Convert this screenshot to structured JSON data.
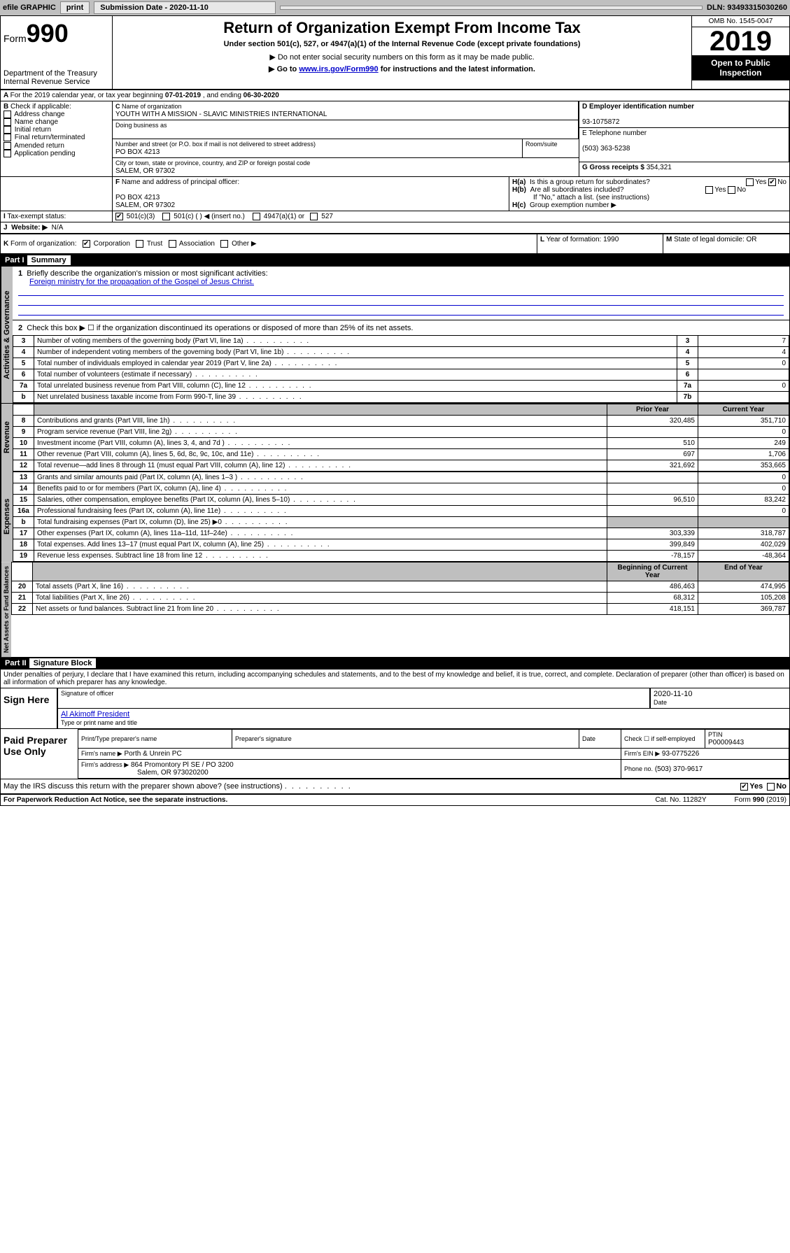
{
  "topbar": {
    "efile": "efile GRAPHIC",
    "print": "print",
    "sub_label": "Submission Date - 2020-11-10",
    "dln": "DLN: 93493315030260"
  },
  "header": {
    "form_word": "Form",
    "form_num": "990",
    "dept": "Department of the Treasury",
    "irs": "Internal Revenue Service",
    "title": "Return of Organization Exempt From Income Tax",
    "subtitle": "Under section 501(c), 527, or 4947(a)(1) of the Internal Revenue Code (except private foundations)",
    "note1": "▶ Do not enter social security numbers on this form as it may be made public.",
    "note2_pre": "▶ Go to ",
    "note2_link": "www.irs.gov/Form990",
    "note2_post": " for instructions and the latest information.",
    "omb": "OMB No. 1545-0047",
    "year": "2019",
    "open": "Open to Public Inspection"
  },
  "period": {
    "text_pre": "For the 2019 calendar year, or tax year beginning ",
    "begin": "07-01-2019",
    "mid": " , and ending ",
    "end": "06-30-2020"
  },
  "boxB": {
    "label": "Check if applicable:",
    "items": [
      "Address change",
      "Name change",
      "Initial return",
      "Final return/terminated",
      "Amended return",
      "Application pending"
    ]
  },
  "boxC": {
    "name_label": "Name of organization",
    "name": "YOUTH WITH A MISSION - SLAVIC MINISTRIES INTERNATIONAL",
    "dba_label": "Doing business as",
    "addr_label": "Number and street (or P.O. box if mail is not delivered to street address)",
    "room_label": "Room/suite",
    "addr": "PO BOX 4213",
    "city_label": "City or town, state or province, country, and ZIP or foreign postal code",
    "city": "SALEM, OR  97302"
  },
  "boxD": {
    "label": "D Employer identification number",
    "val": "93-1075872"
  },
  "boxE": {
    "label": "E Telephone number",
    "val": "(503) 363-5238"
  },
  "boxG": {
    "label": "G Gross receipts $ ",
    "val": "354,321"
  },
  "boxF": {
    "label": "Name and address of principal officer:",
    "line1": "PO BOX 4213",
    "line2": "SALEM, OR  97302"
  },
  "boxH": {
    "a": "Is this a group return for subordinates?",
    "b": "Are all subordinates included?",
    "b_note": "If \"No,\" attach a list. (see instructions)",
    "c": "Group exemption number ▶",
    "yes": "Yes",
    "no": "No"
  },
  "boxI": {
    "label": "Tax-exempt status:",
    "opt1": "501(c)(3)",
    "opt2": "501(c) (   ) ◀ (insert no.)",
    "opt3": "4947(a)(1) or",
    "opt4": "527"
  },
  "boxJ": {
    "label": "Website: ▶",
    "val": "N/A"
  },
  "boxK": {
    "label": "Form of organization:",
    "corp": "Corporation",
    "trust": "Trust",
    "assoc": "Association",
    "other": "Other ▶"
  },
  "boxL": {
    "label": "Year of formation: ",
    "val": "1990"
  },
  "boxM": {
    "label": "State of legal domicile: ",
    "val": "OR"
  },
  "part1": {
    "label": "Part I",
    "title": "Summary",
    "sides": {
      "gov": "Activities & Governance",
      "rev": "Revenue",
      "exp": "Expenses",
      "net": "Net Assets or Fund Balances"
    },
    "q1": "Briefly describe the organization's mission or most significant activities:",
    "q1_ans": "Foreign ministry for the propagation of the Gospel of Jesus Christ.",
    "q2": "Check this box ▶ ☐  if the organization discontinued its operations or disposed of more than 25% of its net assets.",
    "rows_gov": [
      {
        "n": "3",
        "t": "Number of voting members of the governing body (Part VI, line 1a)",
        "b": "3",
        "v": "7"
      },
      {
        "n": "4",
        "t": "Number of independent voting members of the governing body (Part VI, line 1b)",
        "b": "4",
        "v": "4"
      },
      {
        "n": "5",
        "t": "Total number of individuals employed in calendar year 2019 (Part V, line 2a)",
        "b": "5",
        "v": "0"
      },
      {
        "n": "6",
        "t": "Total number of volunteers (estimate if necessary)",
        "b": "6",
        "v": ""
      },
      {
        "n": "7a",
        "t": "Total unrelated business revenue from Part VIII, column (C), line 12",
        "b": "7a",
        "v": "0"
      },
      {
        "n": "b",
        "t": "Net unrelated business taxable income from Form 990-T, line 39",
        "b": "7b",
        "v": ""
      }
    ],
    "col_prior": "Prior Year",
    "col_curr": "Current Year",
    "col_beg": "Beginning of Current Year",
    "col_end": "End of Year",
    "rows_rev": [
      {
        "n": "8",
        "t": "Contributions and grants (Part VIII, line 1h)",
        "p": "320,485",
        "c": "351,710"
      },
      {
        "n": "9",
        "t": "Program service revenue (Part VIII, line 2g)",
        "p": "",
        "c": "0"
      },
      {
        "n": "10",
        "t": "Investment income (Part VIII, column (A), lines 3, 4, and 7d )",
        "p": "510",
        "c": "249"
      },
      {
        "n": "11",
        "t": "Other revenue (Part VIII, column (A), lines 5, 6d, 8c, 9c, 10c, and 11e)",
        "p": "697",
        "c": "1,706"
      },
      {
        "n": "12",
        "t": "Total revenue—add lines 8 through 11 (must equal Part VIII, column (A), line 12)",
        "p": "321,692",
        "c": "353,665"
      }
    ],
    "rows_exp": [
      {
        "n": "13",
        "t": "Grants and similar amounts paid (Part IX, column (A), lines 1–3 )",
        "p": "",
        "c": "0"
      },
      {
        "n": "14",
        "t": "Benefits paid to or for members (Part IX, column (A), line 4)",
        "p": "",
        "c": "0"
      },
      {
        "n": "15",
        "t": "Salaries, other compensation, employee benefits (Part IX, column (A), lines 5–10)",
        "p": "96,510",
        "c": "83,242"
      },
      {
        "n": "16a",
        "t": "Professional fundraising fees (Part IX, column (A), line 11e)",
        "p": "",
        "c": "0"
      },
      {
        "n": "b",
        "t": "Total fundraising expenses (Part IX, column (D), line 25) ▶0",
        "p": "",
        "c": "",
        "grey": true
      },
      {
        "n": "17",
        "t": "Other expenses (Part IX, column (A), lines 11a–11d, 11f–24e)",
        "p": "303,339",
        "c": "318,787"
      },
      {
        "n": "18",
        "t": "Total expenses. Add lines 13–17 (must equal Part IX, column (A), line 25)",
        "p": "399,849",
        "c": "402,029"
      },
      {
        "n": "19",
        "t": "Revenue less expenses. Subtract line 18 from line 12",
        "p": "-78,157",
        "c": "-48,364"
      }
    ],
    "rows_net": [
      {
        "n": "20",
        "t": "Total assets (Part X, line 16)",
        "p": "486,463",
        "c": "474,995"
      },
      {
        "n": "21",
        "t": "Total liabilities (Part X, line 26)",
        "p": "68,312",
        "c": "105,208"
      },
      {
        "n": "22",
        "t": "Net assets or fund balances. Subtract line 21 from line 20",
        "p": "418,151",
        "c": "369,787"
      }
    ]
  },
  "part2": {
    "label": "Part II",
    "title": "Signature Block",
    "penalty": "Under penalties of perjury, I declare that I have examined this return, including accompanying schedules and statements, and to the best of my knowledge and belief, it is true, correct, and complete. Declaration of preparer (other than officer) is based on all information of which preparer has any knowledge.",
    "sign_here": "Sign Here",
    "sig_officer": "Signature of officer",
    "date": "Date",
    "date_val": "2020-11-10",
    "name_title": "Al Akimoff  President",
    "type_name": "Type or print name and title",
    "paid": "Paid Preparer Use Only",
    "prep_name_label": "Print/Type preparer's name",
    "prep_sig_label": "Preparer's signature",
    "prep_date_label": "Date",
    "check_self": "Check ☐ if self-employed",
    "ptin_label": "PTIN",
    "ptin": "P00009443",
    "firm_name_label": "Firm's name  ▶",
    "firm_name": "Porth & Unrein PC",
    "firm_ein_label": "Firm's EIN ▶",
    "firm_ein": "93-0775226",
    "firm_addr_label": "Firm's address ▶",
    "firm_addr1": "864 Promontory Pl SE / PO 3200",
    "firm_addr2": "Salem, OR  973020200",
    "phone_label": "Phone no.",
    "phone": "(503) 370-9617",
    "discuss": "May the IRS discuss this return with the preparer shown above? (see instructions)",
    "discuss_yes": "Yes",
    "discuss_no": "No"
  },
  "footer": {
    "pra": "For Paperwork Reduction Act Notice, see the separate instructions.",
    "cat": "Cat. No. 11282Y",
    "form": "Form 990 (2019)"
  }
}
